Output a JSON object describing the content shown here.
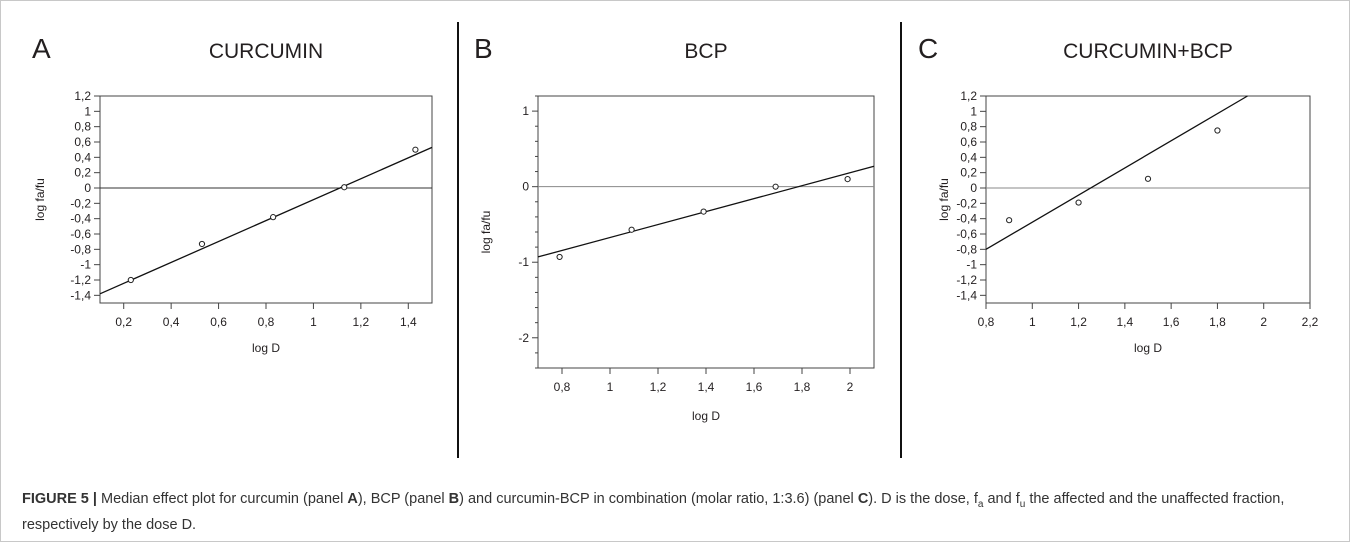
{
  "caption": {
    "lead": "FIGURE 5 |",
    "text": [
      " Median effect plot for curcumin (panel ",
      "A",
      "), BCP (panel ",
      "B",
      ") and curcumin-BCP in combination (molar ratio, 1:3.6) (panel ",
      "C",
      "). D is the dose, f",
      "a",
      " and f",
      "u",
      " the affected and the unaffected fraction, respectively by the dose D."
    ]
  },
  "chart_data": [
    {
      "type": "scatter",
      "panel_letter": "A",
      "title": "CURCUMIN",
      "xlabel": "log D",
      "ylabel": "log fa/fu",
      "xlim": [
        0.1,
        1.5
      ],
      "ylim": [
        -1.5,
        1.2
      ],
      "xticks": [
        "0,2",
        "0,4",
        "0,6",
        "0,8",
        "1",
        "1,2",
        "1,4"
      ],
      "xtick_values": [
        0.2,
        0.4,
        0.6,
        0.8,
        1.0,
        1.2,
        1.4
      ],
      "yticks": [
        "1,2",
        "1",
        "0,8",
        "0,6",
        "0,4",
        "0,2",
        "0",
        "-0,2",
        "-0,4",
        "-0,6",
        "-0,8",
        "-1",
        "-1,2",
        "-1,4"
      ],
      "ytick_values": [
        1.2,
        1.0,
        0.8,
        0.6,
        0.4,
        0.2,
        0.0,
        -0.2,
        -0.4,
        -0.6,
        -0.8,
        -1.0,
        -1.2,
        -1.4
      ],
      "points": [
        {
          "x": 0.23,
          "y": -1.2
        },
        {
          "x": 0.53,
          "y": -0.73
        },
        {
          "x": 0.83,
          "y": -0.38
        },
        {
          "x": 1.13,
          "y": 0.01
        },
        {
          "x": 1.43,
          "y": 0.5
        }
      ],
      "fit_line": {
        "x": [
          0.1,
          1.5
        ],
        "y": [
          -1.38,
          0.53
        ]
      },
      "zero_line": 0,
      "grid": false
    },
    {
      "type": "scatter",
      "panel_letter": "B",
      "title": "BCP",
      "xlabel": "log D",
      "ylabel": "log fa/fu",
      "xlim": [
        0.7,
        2.1
      ],
      "ylim": [
        -2.4,
        1.2
      ],
      "xticks": [
        "0,8",
        "1",
        "1,2",
        "1,4",
        "1,6",
        "1,8",
        "2"
      ],
      "xtick_values": [
        0.8,
        1.0,
        1.2,
        1.4,
        1.6,
        1.8,
        2.0
      ],
      "yticks": [
        "1",
        "0",
        "-1",
        "-2"
      ],
      "ytick_values": [
        1,
        0,
        -1,
        -2
      ],
      "points": [
        {
          "x": 0.79,
          "y": -0.93
        },
        {
          "x": 1.09,
          "y": -0.57
        },
        {
          "x": 1.39,
          "y": -0.33
        },
        {
          "x": 1.69,
          "y": 0.0
        },
        {
          "x": 1.99,
          "y": 0.1
        }
      ],
      "fit_line": {
        "x": [
          0.7,
          2.1
        ],
        "y": [
          -0.93,
          0.27
        ]
      },
      "zero_line": 0,
      "grid": false
    },
    {
      "type": "scatter",
      "panel_letter": "C",
      "title": "CURCUMIN+BCP",
      "xlabel": "log D",
      "ylabel": "log fa/fu",
      "xlim": [
        0.8,
        2.2
      ],
      "ylim": [
        -1.5,
        1.2
      ],
      "xticks": [
        "0,8",
        "1",
        "1,2",
        "1,4",
        "1,6",
        "1,8",
        "2",
        "2,2"
      ],
      "xtick_values": [
        0.8,
        1.0,
        1.2,
        1.4,
        1.6,
        1.8,
        2.0,
        2.2
      ],
      "yticks": [
        "1,2",
        "1",
        "0,8",
        "0,6",
        "0,4",
        "0,2",
        "0",
        "-0,2",
        "-0,4",
        "-0,6",
        "-0,8",
        "-1",
        "-1,2",
        "-1,4"
      ],
      "ytick_values": [
        1.2,
        1.0,
        0.8,
        0.6,
        0.4,
        0.2,
        0.0,
        -0.2,
        -0.4,
        -0.6,
        -0.8,
        -1.0,
        -1.2,
        -1.4
      ],
      "points": [
        {
          "x": 0.9,
          "y": -0.42
        },
        {
          "x": 1.2,
          "y": -0.19
        },
        {
          "x": 1.5,
          "y": 0.12
        },
        {
          "x": 1.8,
          "y": 0.75
        }
      ],
      "fit_line": {
        "x": [
          0.8,
          1.93
        ],
        "y": [
          -0.8,
          1.2
        ]
      },
      "zero_line": 0,
      "grid": false
    }
  ]
}
